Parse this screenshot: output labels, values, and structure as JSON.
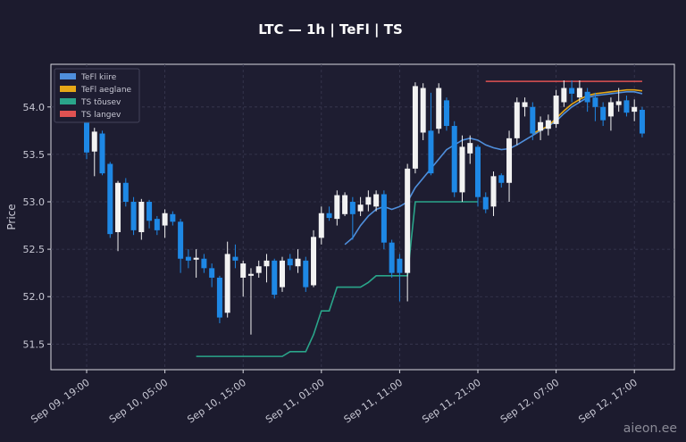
{
  "chart_data": {
    "type": "candlestick",
    "title": "LTC — 1h  |  TeFl  |  TS",
    "y_label": "Price",
    "watermark": "aieon.ee",
    "categories": [
      "Sep 09, 19:00",
      null,
      null,
      null,
      null,
      null,
      null,
      null,
      null,
      null,
      "Sep 10, 05:00",
      null,
      null,
      null,
      null,
      null,
      null,
      null,
      null,
      null,
      "Sep 10, 15:00",
      null,
      null,
      null,
      null,
      null,
      null,
      null,
      null,
      null,
      "Sep 11, 01:00",
      null,
      null,
      null,
      null,
      null,
      null,
      null,
      null,
      null,
      "Sep 11, 11:00",
      null,
      null,
      null,
      null,
      null,
      null,
      null,
      null,
      null,
      "Sep 11, 21:00",
      null,
      null,
      null,
      null,
      null,
      null,
      null,
      null,
      null,
      "Sep 12, 07:00",
      null,
      null,
      null,
      null,
      null,
      null,
      null,
      null,
      null,
      "Sep 12, 17:00",
      null
    ],
    "open": [
      53.85,
      53.53,
      53.72,
      53.4,
      52.68,
      53.2,
      53.0,
      52.68,
      53.0,
      52.82,
      52.75,
      52.87,
      52.79,
      52.42,
      52.39,
      52.4,
      52.3,
      52.2,
      51.83,
      52.42,
      52.2,
      52.22,
      52.25,
      52.32,
      52.38,
      52.1,
      52.4,
      52.32,
      52.38,
      52.12,
      52.62,
      52.88,
      52.82,
      52.87,
      53.0,
      52.9,
      52.97,
      52.95,
      53.08,
      52.57,
      52.4,
      52.25,
      53.35,
      53.73,
      53.75,
      53.77,
      54.07,
      53.8,
      53.1,
      53.51,
      53.58,
      53.05,
      52.95,
      53.28,
      53.2,
      53.67,
      54.0,
      54.0,
      53.75,
      53.77,
      53.82,
      54.05,
      54.2,
      54.1,
      54.16,
      54.1,
      54.0,
      53.9,
      54.02,
      54.07,
      53.95,
      53.97
    ],
    "high": [
      53.9,
      53.78,
      53.75,
      53.42,
      53.22,
      53.25,
      53.05,
      53.03,
      53.02,
      52.85,
      52.92,
      52.9,
      52.82,
      52.5,
      52.5,
      52.45,
      52.35,
      52.22,
      52.58,
      52.55,
      52.38,
      52.3,
      52.38,
      52.45,
      52.4,
      52.42,
      52.45,
      52.5,
      52.42,
      52.7,
      52.95,
      52.95,
      53.12,
      53.1,
      53.05,
      53.05,
      53.12,
      53.12,
      53.12,
      52.6,
      52.45,
      53.4,
      54.26,
      54.25,
      54.15,
      54.25,
      54.1,
      53.85,
      53.7,
      53.7,
      53.6,
      53.1,
      53.32,
      53.3,
      53.75,
      54.1,
      54.1,
      54.05,
      53.9,
      53.92,
      54.18,
      54.28,
      54.28,
      54.28,
      54.2,
      54.15,
      54.05,
      54.1,
      54.2,
      54.12,
      54.08,
      54.0
    ],
    "low": [
      53.45,
      53.27,
      53.28,
      52.62,
      52.48,
      52.95,
      52.65,
      52.6,
      52.72,
      52.65,
      52.62,
      52.75,
      52.25,
      52.3,
      52.2,
      52.25,
      52.1,
      51.72,
      51.78,
      52.3,
      52.0,
      51.6,
      52.2,
      52.15,
      51.98,
      52.05,
      52.28,
      52.25,
      52.05,
      52.1,
      52.55,
      52.8,
      52.75,
      52.85,
      52.6,
      52.85,
      52.9,
      52.9,
      52.5,
      52.2,
      51.95,
      51.95,
      53.3,
      53.65,
      53.28,
      53.72,
      53.75,
      53.05,
      53.0,
      53.4,
      52.95,
      52.88,
      52.85,
      53.15,
      53.0,
      53.6,
      53.9,
      53.65,
      53.65,
      53.7,
      53.78,
      54.0,
      54.05,
      54.05,
      53.95,
      53.85,
      53.8,
      53.75,
      53.95,
      53.9,
      53.85,
      53.68
    ],
    "close": [
      53.52,
      53.74,
      53.3,
      52.66,
      53.2,
      53.0,
      52.7,
      53.0,
      52.8,
      52.7,
      52.88,
      52.79,
      52.4,
      52.38,
      52.41,
      52.3,
      52.2,
      51.78,
      52.45,
      52.38,
      52.35,
      52.24,
      52.32,
      52.38,
      52.02,
      52.38,
      52.33,
      52.4,
      52.1,
      52.63,
      52.88,
      52.83,
      53.07,
      53.07,
      52.87,
      52.97,
      53.05,
      53.08,
      52.57,
      52.25,
      52.25,
      53.35,
      54.22,
      54.2,
      53.3,
      54.2,
      53.8,
      53.1,
      53.58,
      53.62,
      53.05,
      52.92,
      53.27,
      53.2,
      53.67,
      54.05,
      54.05,
      53.72,
      53.84,
      53.86,
      54.12,
      54.2,
      54.14,
      54.2,
      54.05,
      54.0,
      53.86,
      54.05,
      54.06,
      53.94,
      54.0,
      53.72
    ],
    "up_color": "#f2f2f2",
    "down_color": "#1e88e5",
    "series": [
      {
        "name": "TeFl kiire",
        "color": "#4f8fdc",
        "values": [
          null,
          null,
          null,
          null,
          null,
          null,
          null,
          null,
          null,
          null,
          null,
          null,
          null,
          null,
          null,
          null,
          null,
          null,
          null,
          null,
          null,
          null,
          null,
          null,
          null,
          null,
          null,
          null,
          null,
          null,
          null,
          null,
          null,
          52.55,
          52.62,
          52.75,
          52.85,
          52.92,
          52.95,
          52.92,
          52.95,
          53.0,
          53.15,
          53.25,
          53.35,
          53.45,
          53.55,
          53.6,
          53.65,
          53.67,
          53.65,
          53.6,
          53.57,
          53.55,
          53.56,
          53.6,
          53.65,
          53.7,
          53.75,
          53.8,
          53.85,
          53.93,
          54.0,
          54.05,
          54.1,
          54.12,
          54.13,
          54.14,
          54.15,
          54.16,
          54.16,
          54.14
        ]
      },
      {
        "name": "TeFl aeglane",
        "color": "#e6a817",
        "values": [
          null,
          null,
          null,
          null,
          null,
          null,
          null,
          null,
          null,
          null,
          null,
          null,
          null,
          null,
          null,
          null,
          null,
          null,
          null,
          null,
          null,
          null,
          null,
          null,
          null,
          null,
          null,
          null,
          null,
          null,
          null,
          null,
          null,
          null,
          null,
          null,
          null,
          null,
          null,
          null,
          null,
          null,
          null,
          null,
          null,
          null,
          null,
          null,
          null,
          null,
          null,
          null,
          null,
          null,
          null,
          null,
          null,
          53.72,
          53.76,
          53.8,
          53.88,
          53.96,
          54.03,
          54.08,
          54.12,
          54.14,
          54.15,
          54.16,
          54.17,
          54.18,
          54.18,
          54.17
        ]
      },
      {
        "name": "TS tõusev",
        "color": "#2aa58a",
        "values": [
          null,
          null,
          null,
          null,
          null,
          null,
          null,
          null,
          null,
          null,
          null,
          null,
          null,
          null,
          51.37,
          51.37,
          51.37,
          51.37,
          51.37,
          51.37,
          51.37,
          51.37,
          51.37,
          51.37,
          51.37,
          51.37,
          51.42,
          51.42,
          51.42,
          51.6,
          51.85,
          51.85,
          52.1,
          52.1,
          52.1,
          52.1,
          52.15,
          52.22,
          52.22,
          52.22,
          52.22,
          52.22,
          53.0,
          53.0,
          53.0,
          53.0,
          53.0,
          53.0,
          53.0,
          53.0,
          53.0,
          null,
          null,
          null,
          null,
          null,
          null,
          null,
          null,
          null,
          null,
          null,
          null,
          null,
          null,
          null,
          null,
          null,
          null,
          null,
          null,
          null
        ]
      },
      {
        "name": "TS langev",
        "color": "#e05252",
        "values": [
          null,
          null,
          null,
          null,
          null,
          null,
          null,
          null,
          null,
          null,
          null,
          null,
          null,
          null,
          null,
          null,
          null,
          null,
          null,
          null,
          null,
          null,
          null,
          null,
          null,
          null,
          null,
          null,
          null,
          null,
          null,
          null,
          null,
          null,
          null,
          null,
          null,
          null,
          null,
          null,
          null,
          null,
          null,
          null,
          null,
          null,
          null,
          null,
          null,
          null,
          null,
          54.27,
          54.27,
          54.27,
          54.27,
          54.27,
          54.27,
          54.27,
          54.27,
          54.27,
          54.27,
          54.27,
          54.27,
          54.27,
          54.27,
          54.27,
          54.27,
          54.27,
          54.27,
          54.27,
          54.27,
          54.27
        ]
      }
    ],
    "ylim": [
      51.23,
      54.45
    ],
    "yticks": [
      51.5,
      {
        "value": 52.0,
        "label": "52.0"
      },
      52.5,
      {
        "value": 53.0,
        "label": "53.0"
      },
      53.5,
      {
        "value": 54.0,
        "label": "54.0"
      }
    ],
    "grid": true,
    "legend": "upper left"
  }
}
